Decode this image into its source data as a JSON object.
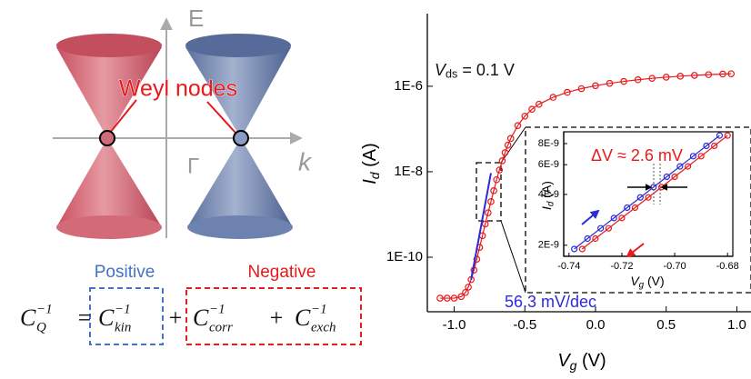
{
  "diagram": {
    "axis_labels": {
      "energy": "E",
      "gamma": "Γ",
      "momentum": "k"
    },
    "callout": "Weyl nodes",
    "groups": [
      "Positive",
      "Negative"
    ],
    "equation": {
      "terms": [
        {
          "base": "C",
          "sup": "−1",
          "sub": "Q"
        },
        {
          "base": "C",
          "sup": "−1",
          "sub": "kin"
        },
        {
          "base": "C",
          "sup": "−1",
          "sub": "corr"
        },
        {
          "base": "C",
          "sup": "−1",
          "sub": "exch"
        }
      ],
      "operators": [
        "=",
        "+",
        "+"
      ]
    }
  },
  "chart_data": [
    {
      "type": "line",
      "log_y": true,
      "grid": false,
      "x_label": {
        "symbol": "V",
        "sub": "g",
        "unit": " (V)"
      },
      "y_label": {
        "symbol": "I",
        "sub": "d",
        "unit": " (A)"
      },
      "xlim": [
        -1.19,
        1.1
      ],
      "ylim": [
        5.3e-12,
        5e-05
      ],
      "xticks": [
        {
          "value": -1.0,
          "label": "-1.0"
        },
        -0.5,
        {
          "value": 0.0,
          "label": "0.0"
        },
        0.5,
        {
          "value": 1.0,
          "label": "1.0"
        }
      ],
      "yticks": [
        {
          "value": 1e-10,
          "label": "1E-10"
        },
        {
          "value": 1e-08,
          "label": "1E-8"
        },
        {
          "value": 1e-06,
          "label": "1E-6"
        }
      ],
      "annotations": [
        {
          "parts": [
            "V",
            "ds",
            " = 0.1 V"
          ],
          "color": "#111111"
        },
        {
          "text": "56.3 mV/dec",
          "color": "#2b2bd9"
        }
      ],
      "series": [
        {
          "color": "#e8191b",
          "marker": "circle",
          "x": [
            -1.1,
            -1.05,
            -1.0,
            -0.95,
            -0.92,
            -0.9,
            -0.88,
            -0.86,
            -0.84,
            -0.82,
            -0.8,
            -0.78,
            -0.76,
            -0.74,
            -0.72,
            -0.7,
            -0.68,
            -0.66,
            -0.64,
            -0.62,
            -0.6,
            -0.55,
            -0.5,
            -0.45,
            -0.4,
            -0.3,
            -0.2,
            -0.1,
            0,
            0.1,
            0.2,
            0.3,
            0.4,
            0.5,
            0.6,
            0.7,
            0.8,
            0.9,
            0.96
          ],
          "values": [
            1.1e-11,
            1.1e-11,
            1.1e-11,
            1.2e-11,
            1.5e-11,
            2e-11,
            3e-11,
            5e-11,
            9e-11,
            1.7e-10,
            3.2e-10,
            6e-10,
            1.1e-09,
            2e-09,
            3.6e-09,
            6.5e-09,
            1.1e-08,
            1.8e-08,
            2.8e-08,
            4.2e-08,
            6e-08,
            1.2e-07,
            2e-07,
            2.9e-07,
            3.8e-07,
            5.5e-07,
            7.2e-07,
            8.8e-07,
            1.03e-06,
            1.17e-06,
            1.3e-06,
            1.42e-06,
            1.53e-06,
            1.63e-06,
            1.72e-06,
            1.8e-06,
            1.87e-06,
            1.93e-06,
            1.96e-06
          ]
        },
        {
          "color": "#2b2bd9",
          "marker": "none",
          "x": [
            -0.88,
            -0.74
          ],
          "values": [
            3e-11,
            9.3e-09
          ]
        }
      ]
    },
    {
      "type": "line",
      "log_y": true,
      "grid": false,
      "frame": true,
      "x_label": {
        "symbol": "V",
        "sub": "g",
        "unit": " (V)"
      },
      "y_label": {
        "symbol": "I",
        "sub": "d",
        "unit": " (A)"
      },
      "xlim": [
        -0.742,
        -0.678
      ],
      "ylim": [
        1.72e-09,
        9.4e-09
      ],
      "xticks": [
        -0.74,
        -0.72,
        {
          "value": -0.7,
          "label": "-0.70"
        },
        -0.68
      ],
      "yticks": [
        {
          "value": 2e-09,
          "label": "2E-9"
        },
        {
          "value": 4e-09,
          "label": "4E-9"
        },
        {
          "value": 6e-09,
          "label": "6E-9"
        },
        {
          "value": 8e-09,
          "label": "8E-9"
        }
      ],
      "annotations": [
        {
          "text": "ΔV ≈ 2.6 mV",
          "color": "#e8191b"
        }
      ],
      "series": [
        {
          "color": "#2b2bd9",
          "marker": "circle",
          "x": [
            -0.738,
            -0.733,
            -0.728,
            -0.723,
            -0.718,
            -0.713,
            -0.708,
            -0.703,
            -0.698,
            -0.693,
            -0.688,
            -0.683
          ],
          "values": [
            1.9e-09,
            2.19e-09,
            2.52e-09,
            2.9e-09,
            3.34e-09,
            3.84e-09,
            4.42e-09,
            5.09e-09,
            5.86e-09,
            6.74e-09,
            7.76e-09,
            8.93e-09
          ]
        },
        {
          "color": "#e8191b",
          "marker": "circle",
          "x": [
            -0.735,
            -0.73,
            -0.725,
            -0.72,
            -0.715,
            -0.71,
            -0.705,
            -0.7,
            -0.695,
            -0.69,
            -0.685,
            -0.68
          ],
          "values": [
            1.9e-09,
            2.19e-09,
            2.52e-09,
            2.9e-09,
            3.34e-09,
            3.84e-09,
            4.42e-09,
            5.09e-09,
            5.86e-09,
            6.74e-09,
            7.76e-09,
            8.93e-09
          ]
        }
      ]
    }
  ]
}
